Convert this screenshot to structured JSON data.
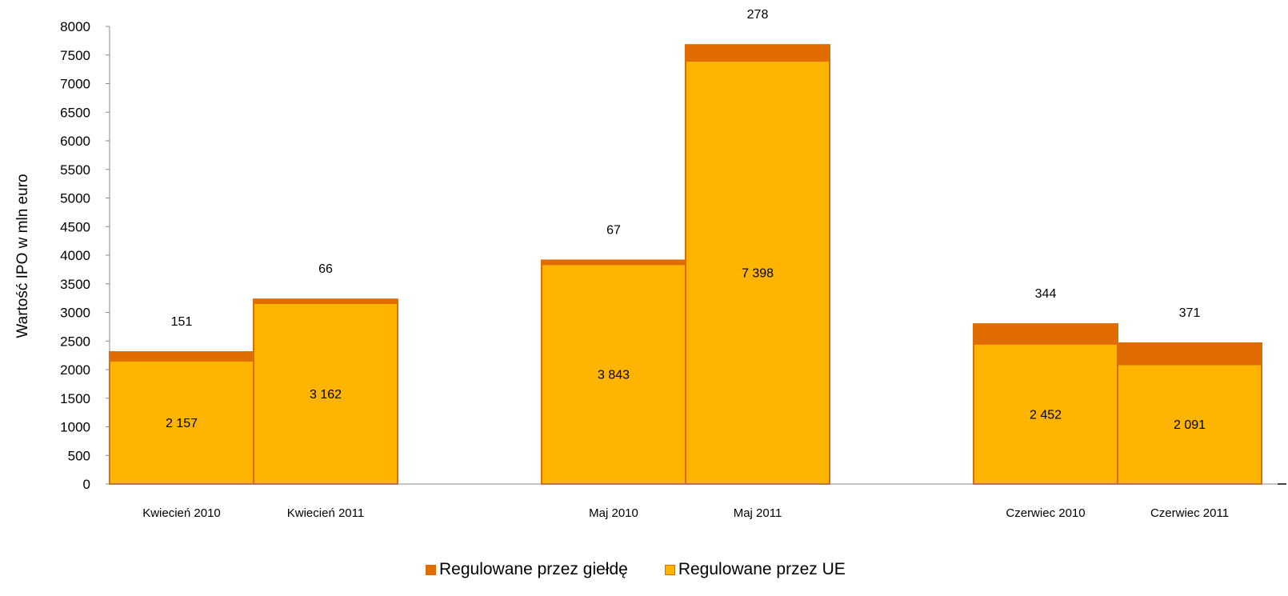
{
  "chart_data": {
    "type": "bar",
    "stacked": true,
    "ylabel": "Wartość IPO w mln euro",
    "ylim": [
      0,
      8000
    ],
    "yticks": [
      "0",
      "500",
      "1000",
      "1500",
      "2000",
      "2500",
      "3000",
      "3500",
      "4000",
      "4500",
      "5000",
      "5500",
      "6000",
      "6500",
      "7000",
      "7500",
      "8000"
    ],
    "categories": [
      "Kwiecień 2010",
      "Kwiecień 2011",
      "Maj 2010",
      "Maj 2011",
      "Czerwiec 2010",
      "Czerwiec 2011"
    ],
    "series": [
      {
        "name": "Regulowane przez UE",
        "color": "#FFB400",
        "values": [
          2157,
          3162,
          3843,
          7398,
          2452,
          2091
        ],
        "labels": [
          "2 157",
          "3 162",
          "3 843",
          "7 398",
          "2 452",
          "2 091"
        ]
      },
      {
        "name": "Regulowane przez giełdę",
        "color": "#E06C00",
        "values": [
          151,
          66,
          67,
          278,
          344,
          371
        ],
        "labels": [
          "151",
          "66",
          "67",
          "278",
          "344",
          "371"
        ]
      }
    ],
    "legend": {
      "position": "bottom",
      "entries": [
        "Regulowane przez giełdę",
        "Regulowane przez UE"
      ]
    },
    "grid": false
  }
}
